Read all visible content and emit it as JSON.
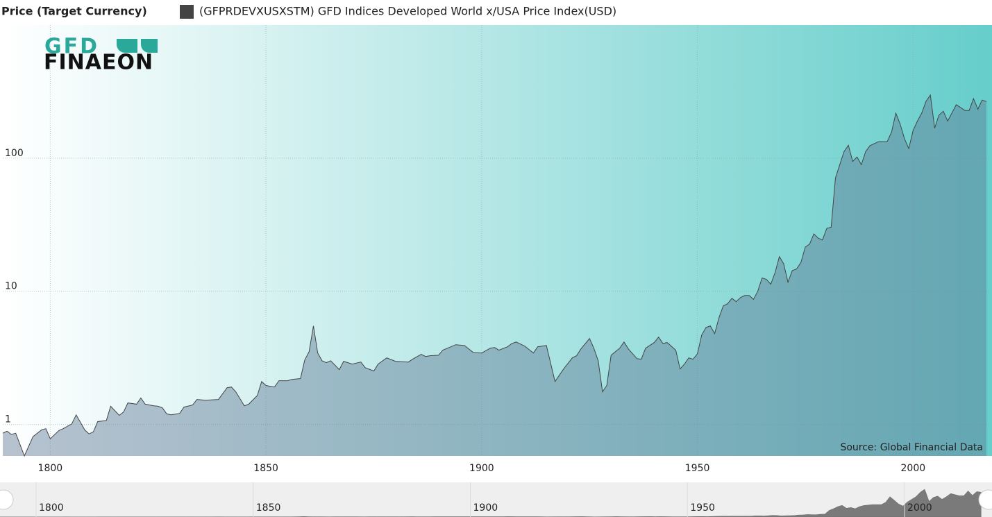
{
  "chart_data": {
    "type": "area",
    "log_scale": true,
    "grid": true,
    "title": "Price (Target Currency)",
    "logo": {
      "top": "GFD",
      "bottom": "FINAEON"
    },
    "annotation": "Source: Global Financial Data",
    "xlim": [
      1789,
      2017
    ],
    "xticks": [
      1800,
      1850,
      1900,
      1950,
      2000
    ],
    "ylim": [
      0.58,
      1000
    ],
    "yticks": [
      1,
      10,
      100
    ],
    "area_color": "#5f7794",
    "x": [
      1789,
      1790,
      1791,
      1792,
      1794,
      1796,
      1798,
      1799,
      1800,
      1802,
      1803,
      1805,
      1806,
      1808,
      1809,
      1810,
      1811,
      1813,
      1814,
      1816,
      1817,
      1818,
      1820,
      1821,
      1822,
      1824,
      1825,
      1826,
      1827,
      1828,
      1830,
      1831,
      1833,
      1834,
      1836,
      1839,
      1841,
      1842,
      1843,
      1845,
      1846,
      1848,
      1849,
      1850,
      1852,
      1853,
      1855,
      1856,
      1858,
      1859,
      1860,
      1861,
      1862,
      1863,
      1864,
      1865,
      1867,
      1868,
      1870,
      1872,
      1873,
      1875,
      1876,
      1878,
      1880,
      1883,
      1884,
      1886,
      1887,
      1888,
      1890,
      1891,
      1894,
      1896,
      1898,
      1900,
      1902,
      1903,
      1904,
      1906,
      1907,
      1908,
      1910,
      1912,
      1913,
      1915,
      1917,
      1919,
      1921,
      1922,
      1923,
      1925,
      1926,
      1927,
      1928,
      1929,
      1930,
      1932,
      1933,
      1934,
      1936,
      1937,
      1938,
      1940,
      1941,
      1942,
      1943,
      1945,
      1946,
      1947,
      1948,
      1949,
      1950,
      1951,
      1952,
      1953,
      1954,
      1955,
      1956,
      1957,
      1958,
      1959,
      1960,
      1961,
      1962,
      1963,
      1964,
      1965,
      1966,
      1967,
      1968,
      1969,
      1970,
      1971,
      1972,
      1973,
      1974,
      1975,
      1976,
      1977,
      1978,
      1979,
      1980,
      1981,
      1982,
      1983,
      1984,
      1985,
      1986,
      1987,
      1988,
      1989,
      1990,
      1992,
      1994,
      1995,
      1996,
      1997,
      1998,
      1999,
      2000,
      2001,
      2002,
      2003,
      2004,
      2005,
      2006,
      2007,
      2008,
      2009,
      2010,
      2011,
      2012,
      2013,
      2014,
      2015,
      2016,
      2017
    ],
    "series": [
      {
        "name": "(GFPRDEVXUSXSTM) GFD Indices Developed World x/USA Price Index(USD)",
        "color": "#444444",
        "values": [
          0.86,
          0.89,
          0.84,
          0.86,
          0.58,
          0.81,
          0.91,
          0.93,
          0.78,
          0.9,
          0.93,
          1.01,
          1.18,
          0.91,
          0.85,
          0.88,
          1.05,
          1.07,
          1.37,
          1.17,
          1.24,
          1.45,
          1.42,
          1.58,
          1.42,
          1.38,
          1.37,
          1.33,
          1.2,
          1.18,
          1.21,
          1.35,
          1.4,
          1.54,
          1.52,
          1.54,
          1.89,
          1.91,
          1.76,
          1.38,
          1.42,
          1.65,
          2.1,
          1.96,
          1.91,
          2.13,
          2.13,
          2.18,
          2.21,
          3.05,
          3.52,
          5.5,
          3.44,
          3.01,
          2.91,
          3.01,
          2.58,
          2.98,
          2.84,
          2.94,
          2.67,
          2.52,
          2.84,
          3.16,
          2.98,
          2.94,
          3.09,
          3.36,
          3.24,
          3.28,
          3.31,
          3.61,
          3.97,
          3.92,
          3.48,
          3.44,
          3.74,
          3.78,
          3.61,
          3.83,
          4.06,
          4.16,
          3.87,
          3.44,
          3.83,
          3.92,
          2.1,
          2.61,
          3.16,
          3.28,
          3.69,
          4.42,
          3.74,
          3.01,
          1.76,
          1.96,
          3.31,
          3.74,
          4.16,
          3.69,
          3.12,
          3.09,
          3.74,
          4.12,
          4.53,
          4.06,
          4.12,
          3.61,
          2.61,
          2.84,
          3.16,
          3.09,
          3.39,
          4.69,
          5.35,
          5.5,
          4.81,
          6.33,
          7.78,
          8.06,
          8.86,
          8.36,
          8.98,
          9.3,
          9.3,
          8.7,
          10.0,
          12.6,
          12.3,
          11.3,
          13.8,
          18.2,
          16.1,
          11.7,
          14.3,
          14.7,
          16.5,
          21.5,
          22.6,
          27.0,
          25.1,
          24.3,
          29.7,
          30.3,
          70.9,
          89.3,
          112,
          125,
          94.5,
          102,
          89.3,
          112,
          124,
          133,
          133,
          157,
          218,
          180,
          140,
          118,
          161,
          190,
          218,
          267,
          298,
          168,
          210,
          225,
          190,
          218,
          252,
          240,
          228,
          228,
          280,
          233,
          273,
          266
        ]
      }
    ]
  }
}
